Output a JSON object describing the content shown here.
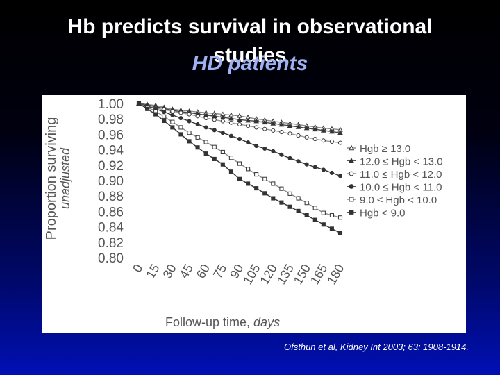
{
  "slide": {
    "title_line1": "Hb predicts survival in observational",
    "title_line2": "studies",
    "subtitle": "HD patients",
    "citation": "Ofsthun et al, Kidney Int 2003; 63: 1908-1914."
  },
  "colors": {
    "title": "#ffffff",
    "subtitle": "#9fb3f3",
    "background_top": "#000000",
    "background_bottom": "#0010b4"
  },
  "chart_data": {
    "type": "line",
    "ylabel": "Proportion surviving",
    "ylabel_sub": "unadjusted",
    "xlabel": "Follow-up time,",
    "xlabel_unit": "days",
    "ylim": [
      0.8,
      1.0
    ],
    "xlim": [
      0,
      180
    ],
    "yticks": [
      "1.00",
      "0.98",
      "0.96",
      "0.94",
      "0.92",
      "0.90",
      "0.88",
      "0.86",
      "0.84",
      "0.82",
      "0.80"
    ],
    "x": [
      0,
      15,
      30,
      45,
      60,
      75,
      90,
      105,
      120,
      135,
      150,
      165,
      180
    ],
    "xticks": [
      "0",
      "15",
      "30",
      "45",
      "60",
      "75",
      "90",
      "105",
      "120",
      "135",
      "150",
      "165",
      "180"
    ],
    "legend_position": "right",
    "series": [
      {
        "name": "Hgb ≥ 13.0",
        "marker": "triangle-open",
        "values": [
          1.0,
          0.9975,
          0.9925,
          0.99,
          0.988,
          0.986,
          0.984,
          0.98,
          0.977,
          0.974,
          0.971,
          0.968,
          0.966
        ]
      },
      {
        "name": "12.0 ≤ Hgb < 13.0",
        "marker": "triangle-filled",
        "values": [
          1.0,
          0.996,
          0.991,
          0.988,
          0.985,
          0.982,
          0.979,
          0.977,
          0.974,
          0.971,
          0.968,
          0.965,
          0.962
        ]
      },
      {
        "name": "11.0 ≤ Hgb < 12.0",
        "marker": "circle-open",
        "values": [
          1.0,
          0.994,
          0.99,
          0.986,
          0.981,
          0.977,
          0.973,
          0.969,
          0.965,
          0.961,
          0.956,
          0.952,
          0.949
        ]
      },
      {
        "name": "10.0 ≤ Hgb < 11.0",
        "marker": "circle-filled",
        "values": [
          1.0,
          0.993,
          0.985,
          0.977,
          0.969,
          0.962,
          0.954,
          0.945,
          0.938,
          0.929,
          0.921,
          0.914,
          0.906
        ]
      },
      {
        "name": "9.0 ≤ Hgb < 10.0",
        "marker": "square-open",
        "values": [
          1.0,
          0.99,
          0.976,
          0.962,
          0.95,
          0.937,
          0.922,
          0.908,
          0.896,
          0.883,
          0.871,
          0.858,
          0.852
        ]
      },
      {
        "name": "Hgb < 9.0",
        "marker": "square-filled",
        "values": [
          1.0,
          0.986,
          0.969,
          0.951,
          0.935,
          0.921,
          0.902,
          0.89,
          0.877,
          0.866,
          0.855,
          0.843,
          0.832
        ]
      }
    ]
  }
}
